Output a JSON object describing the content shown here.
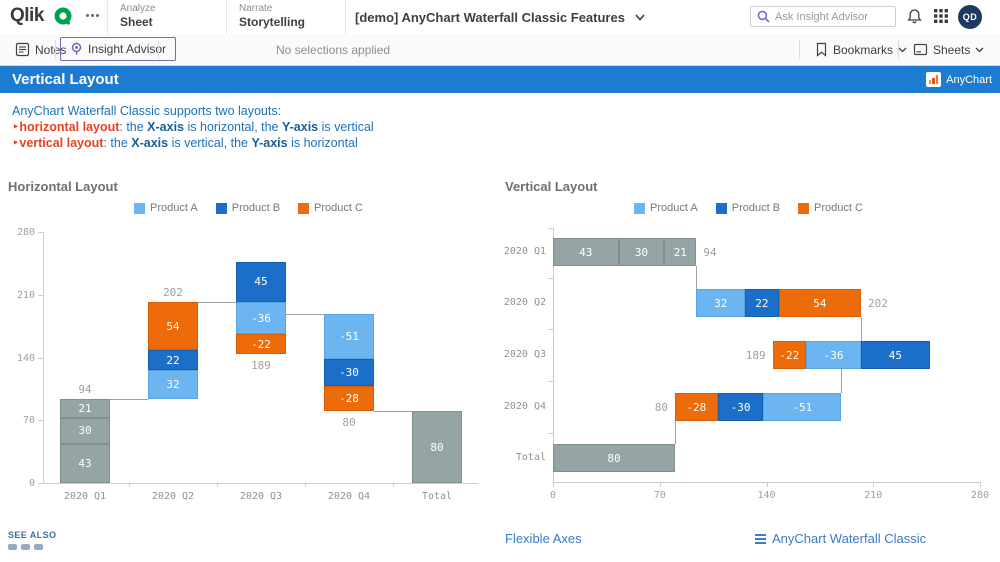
{
  "header": {
    "logo_text": "Qlik",
    "nav": [
      {
        "small": "Analyze",
        "big": "Sheet"
      },
      {
        "small": "Narrate",
        "big": "Storytelling"
      }
    ],
    "app_title": "[demo] AnyChart Waterfall Classic Features",
    "search_placeholder": "Ask Insight Advisor",
    "avatar_initials": "QD"
  },
  "toolbar": {
    "notes_label": "Notes",
    "insight_advisor_label": "Insight Advisor",
    "no_selections_label": "No selections applied",
    "bookmarks_label": "Bookmarks",
    "sheets_label": "Sheets"
  },
  "sheet_bar": {
    "title": "Vertical Layout",
    "badge_label": "AnyChart",
    "color": "#1e7bd2"
  },
  "description": {
    "lines": [
      [
        {
          "t": "AnyChart Waterfall Classic supports two layouts:",
          "s": "n"
        }
      ],
      [
        {
          "t": "‣",
          "s": "r"
        },
        {
          "t": "horizontal layout",
          "s": "rb"
        },
        {
          "t": ": the ",
          "s": "n"
        },
        {
          "t": "X-axis",
          "s": "b"
        },
        {
          "t": " is horizontal, the ",
          "s": "n"
        },
        {
          "t": "Y-axis",
          "s": "b"
        },
        {
          "t": " is vertical",
          "s": "n"
        }
      ],
      [
        {
          "t": "‣",
          "s": "r"
        },
        {
          "t": "vertical layout",
          "s": "rb"
        },
        {
          "t": ": the ",
          "s": "n"
        },
        {
          "t": "X-axis",
          "s": "b"
        },
        {
          "t": " is vertical, the ",
          "s": "n"
        },
        {
          "t": "Y-axis",
          "s": "b"
        },
        {
          "t": " is horizontal",
          "s": "n"
        }
      ]
    ]
  },
  "chart_data": [
    {
      "type": "bar",
      "subtype": "waterfall",
      "orientation": "columns",
      "title": "Horizontal Layout",
      "legend": [
        {
          "name": "Product A",
          "fill": "#6CB5F0",
          "border": "#58A5E2"
        },
        {
          "name": "Product B",
          "fill": "#1B6FC8",
          "border": "#1560AE"
        },
        {
          "name": "Product C",
          "fill": "#EE6B09",
          "border": "#D65F05"
        }
      ],
      "subtotal_color": {
        "fill": "#95A5A6",
        "border": "#7E9091"
      },
      "axis_ticks": [
        0,
        70,
        140,
        210,
        280
      ],
      "axis_max": 280,
      "categories": [
        "2020 Q1",
        "2020 Q2",
        "2020 Q3",
        "2020 Q4",
        "Total"
      ],
      "bars": [
        {
          "category": "2020 Q1",
          "total_label": "94",
          "total_pos": "above",
          "segments": [
            {
              "label": "43",
              "from": 0,
              "to": 43,
              "series": "subtotal"
            },
            {
              "label": "30",
              "from": 43,
              "to": 73,
              "series": "subtotal"
            },
            {
              "label": "21",
              "from": 73,
              "to": 94,
              "series": "subtotal"
            }
          ]
        },
        {
          "category": "2020 Q2",
          "total_label": "202",
          "total_pos": "above",
          "segments": [
            {
              "label": "32",
              "from": 94,
              "to": 126,
              "series": "Product A"
            },
            {
              "label": "22",
              "from": 126,
              "to": 148,
              "series": "Product B"
            },
            {
              "label": "54",
              "from": 148,
              "to": 202,
              "series": "Product C"
            }
          ]
        },
        {
          "category": "2020 Q3",
          "total_label": "189",
          "total_pos": "below",
          "segments": [
            {
              "label": "-22",
              "from": 144,
              "to": 166,
              "series": "Product C"
            },
            {
              "label": "-36",
              "from": 166,
              "to": 202,
              "series": "Product A"
            },
            {
              "label": "45",
              "from": 202,
              "to": 247,
              "series": "Product B"
            }
          ]
        },
        {
          "category": "2020 Q4",
          "total_label": "80",
          "total_pos": "below",
          "segments": [
            {
              "label": "-28",
              "from": 80,
              "to": 108,
              "series": "Product C"
            },
            {
              "label": "-30",
              "from": 108,
              "to": 138,
              "series": "Product B"
            },
            {
              "label": "-51",
              "from": 138,
              "to": 189,
              "series": "Product A"
            }
          ]
        },
        {
          "category": "Total",
          "total_label": "",
          "total_pos": "inside",
          "segments": [
            {
              "label": "80",
              "from": 0,
              "to": 80,
              "series": "subtotal"
            }
          ]
        }
      ],
      "connectors": [
        {
          "value": 94,
          "from": 0,
          "to": 1
        },
        {
          "value": 202,
          "from": 1,
          "to": 2
        },
        {
          "value": 189,
          "from": 2,
          "to": 3
        },
        {
          "value": 80,
          "from": 3,
          "to": 4
        }
      ]
    },
    {
      "type": "bar",
      "subtype": "waterfall",
      "orientation": "bars",
      "title": "Vertical Layout",
      "legend": [
        {
          "name": "Product A",
          "fill": "#6CB5F0",
          "border": "#58A5E2"
        },
        {
          "name": "Product B",
          "fill": "#1B6FC8",
          "border": "#1560AE"
        },
        {
          "name": "Product C",
          "fill": "#EE6B09",
          "border": "#D65F05"
        }
      ],
      "subtotal_color": {
        "fill": "#95A5A6",
        "border": "#7E9091"
      },
      "axis_ticks": [
        0,
        70,
        140,
        210,
        280
      ],
      "axis_max": 280,
      "categories": [
        "2020 Q1",
        "2020 Q2",
        "2020 Q3",
        "2020 Q4",
        "Total"
      ],
      "bars": [
        {
          "category": "2020 Q1",
          "total_label": "94",
          "total_pos": "right",
          "segments": [
            {
              "label": "43",
              "from": 0,
              "to": 43,
              "series": "subtotal"
            },
            {
              "label": "30",
              "from": 43,
              "to": 73,
              "series": "subtotal"
            },
            {
              "label": "21",
              "from": 73,
              "to": 94,
              "series": "subtotal"
            }
          ]
        },
        {
          "category": "2020 Q2",
          "total_label": "202",
          "total_pos": "right",
          "segments": [
            {
              "label": "32",
              "from": 94,
              "to": 126,
              "series": "Product A"
            },
            {
              "label": "22",
              "from": 126,
              "to": 148,
              "series": "Product B"
            },
            {
              "label": "54",
              "from": 148,
              "to": 202,
              "series": "Product C"
            }
          ]
        },
        {
          "category": "2020 Q3",
          "total_label": "189",
          "total_pos": "left",
          "segments": [
            {
              "label": "-22",
              "from": 144,
              "to": 166,
              "series": "Product C"
            },
            {
              "label": "-36",
              "from": 166,
              "to": 202,
              "series": "Product A"
            },
            {
              "label": "45",
              "from": 202,
              "to": 247,
              "series": "Product B"
            }
          ]
        },
        {
          "category": "2020 Q4",
          "total_label": "80",
          "total_pos": "left",
          "segments": [
            {
              "label": "-28",
              "from": 80,
              "to": 108,
              "series": "Product C"
            },
            {
              "label": "-30",
              "from": 108,
              "to": 138,
              "series": "Product B"
            },
            {
              "label": "-51",
              "from": 138,
              "to": 189,
              "series": "Product A"
            }
          ]
        },
        {
          "category": "Total",
          "total_label": "",
          "total_pos": "inside",
          "segments": [
            {
              "label": "80",
              "from": 0,
              "to": 80,
              "series": "subtotal"
            }
          ]
        }
      ],
      "connectors": [
        {
          "value": 94,
          "from": 0,
          "to": 1
        },
        {
          "value": 202,
          "from": 1,
          "to": 2
        },
        {
          "value": 189,
          "from": 2,
          "to": 3
        },
        {
          "value": 80,
          "from": 3,
          "to": 4
        }
      ]
    }
  ],
  "footer": {
    "see_also": "SEE ALSO",
    "link_flexible_axes": "Flexible Axes",
    "link_anychart": "AnyChart Waterfall Classic"
  }
}
